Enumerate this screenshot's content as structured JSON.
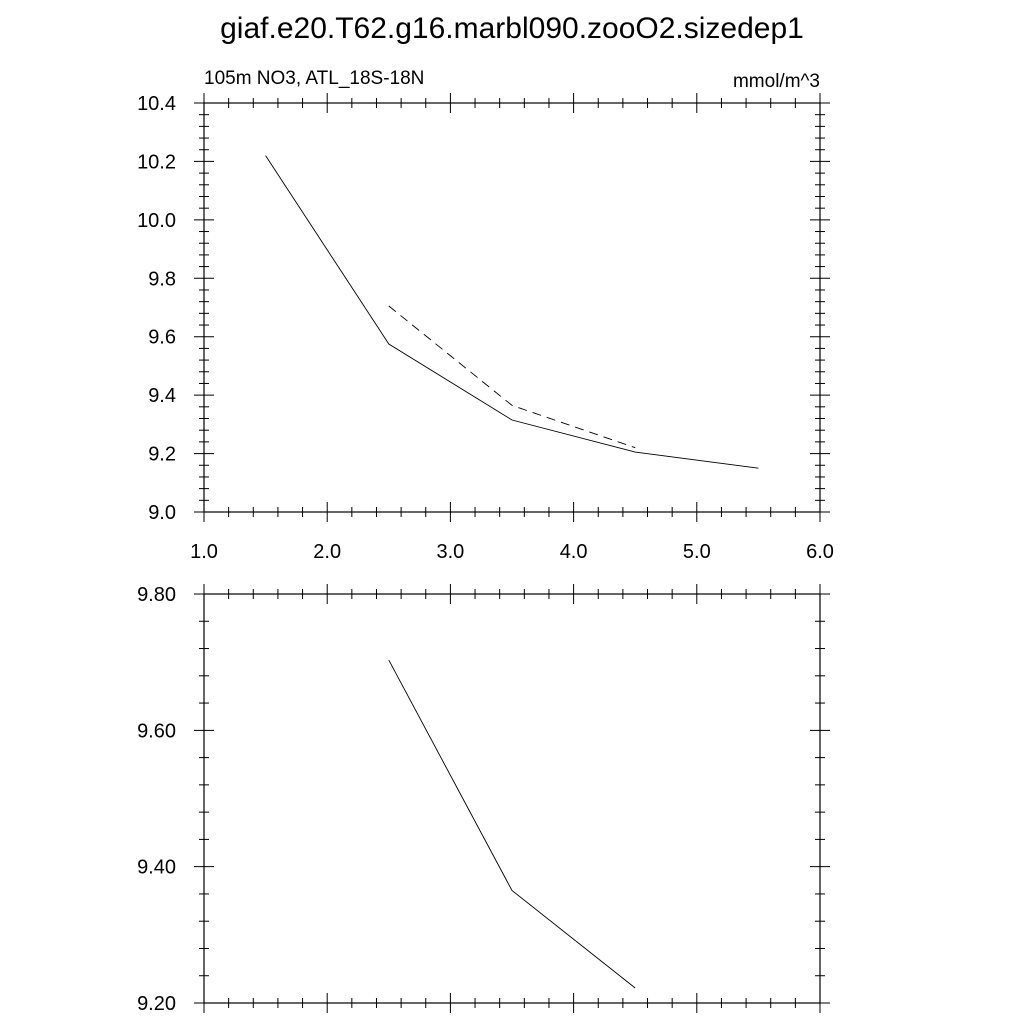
{
  "title": "giaf.e20.T62.g16.marbl090.zooO2.sizedep1",
  "chart_data": [
    {
      "type": "line",
      "subtitle_left": "105m NO3, ATL_18S-18N",
      "subtitle_right": "mmol/m^3",
      "xlim": [
        1.0,
        6.0
      ],
      "ylim": [
        9.0,
        10.4
      ],
      "xticks": [
        "1.0",
        "2.0",
        "3.0",
        "4.0",
        "5.0",
        "6.0"
      ],
      "yticks": [
        "9.0",
        "9.2",
        "9.4",
        "9.6",
        "9.8",
        "10.0",
        "10.2",
        "10.4"
      ],
      "grid": false,
      "series": [
        {
          "style": "solid",
          "x": [
            1.5,
            2.5,
            3.5,
            4.5,
            5.5
          ],
          "y": [
            10.22,
            9.575,
            9.315,
            9.205,
            9.15
          ]
        },
        {
          "style": "dashed",
          "x": [
            2.5,
            3.5,
            4.5
          ],
          "y": [
            9.705,
            9.365,
            9.22
          ]
        }
      ]
    },
    {
      "type": "line",
      "xlim": [
        1.0,
        6.0
      ],
      "ylim": [
        9.2,
        9.8
      ],
      "xticks": [],
      "yticks": [
        "9.20",
        "9.40",
        "9.60",
        "9.80"
      ],
      "grid": false,
      "series": [
        {
          "style": "solid",
          "x": [
            2.5,
            3.5,
            4.5
          ],
          "y": [
            9.703,
            9.365,
            9.222
          ]
        }
      ]
    }
  ]
}
